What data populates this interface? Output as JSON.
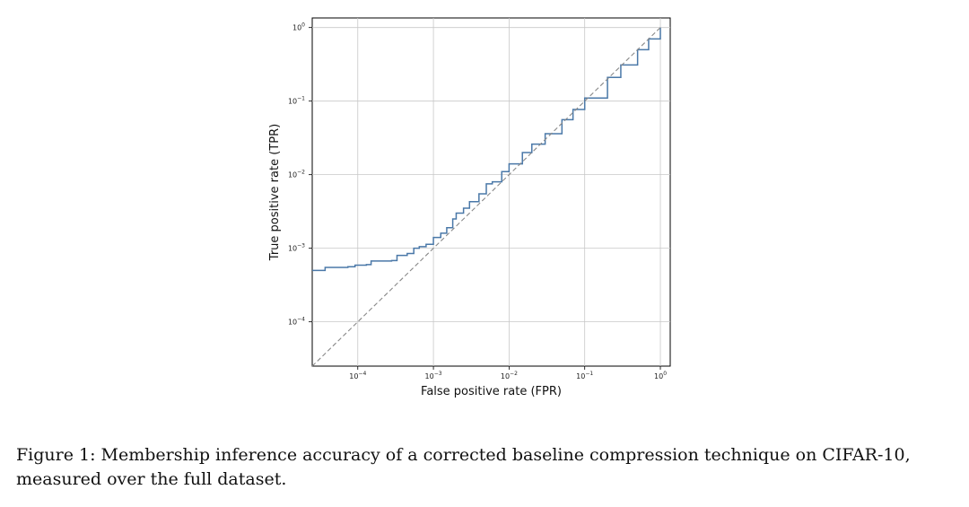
{
  "caption": "Figure 1: Membership inference accuracy of a corrected baseline compression technique on CIFAR-10, measured over the full dataset.",
  "chart_data": {
    "type": "line",
    "xlabel": "False positive rate (FPR)",
    "ylabel": "True positive rate (TPR)",
    "xscale": "log",
    "yscale": "log",
    "xlim": [
      2.5e-05,
      1.35
    ],
    "ylim": [
      2.5e-05,
      1.35
    ],
    "grid": true,
    "x_ticks": [
      {
        "value": 0.0001,
        "base": "10",
        "exp": "−4"
      },
      {
        "value": 0.001,
        "base": "10",
        "exp": "−3"
      },
      {
        "value": 0.01,
        "base": "10",
        "exp": "−2"
      },
      {
        "value": 0.1,
        "base": "10",
        "exp": "−1"
      },
      {
        "value": 1,
        "base": "10",
        "exp": "0"
      }
    ],
    "y_ticks": [
      {
        "value": 0.0001,
        "base": "10",
        "exp": "−4"
      },
      {
        "value": 0.001,
        "base": "10",
        "exp": "−3"
      },
      {
        "value": 0.01,
        "base": "10",
        "exp": "−2"
      },
      {
        "value": 0.1,
        "base": "10",
        "exp": "−1"
      },
      {
        "value": 1,
        "base": "10",
        "exp": "0"
      }
    ],
    "series": [
      {
        "color": "#4a78a8",
        "step": true,
        "x": [
          2.5e-05,
          3.7e-05,
          7.4e-05,
          9.2e-05,
          0.00013,
          0.00015,
          0.00028,
          0.00033,
          0.00045,
          0.00055,
          0.00065,
          0.0008,
          0.001,
          0.00125,
          0.0015,
          0.0018,
          0.002,
          0.0025,
          0.003,
          0.004,
          0.005,
          0.006,
          0.008,
          0.01,
          0.015,
          0.02,
          0.03,
          0.05,
          0.07,
          0.1,
          0.2,
          0.3,
          0.5,
          0.7,
          1.0
        ],
        "y": [
          0.0005,
          0.00055,
          0.00056,
          0.00059,
          0.0006,
          0.00067,
          0.00068,
          0.0008,
          0.00085,
          0.001,
          0.00105,
          0.00113,
          0.0014,
          0.0016,
          0.0019,
          0.0025,
          0.003,
          0.0035,
          0.0043,
          0.0055,
          0.0075,
          0.008,
          0.011,
          0.014,
          0.02,
          0.026,
          0.036,
          0.056,
          0.077,
          0.11,
          0.21,
          0.31,
          0.5,
          0.7,
          1.0
        ]
      },
      {
        "color": "#888888",
        "dashed": true,
        "x": [
          2.5e-05,
          1.0
        ],
        "y": [
          2.5e-05,
          1.0
        ]
      }
    ]
  }
}
